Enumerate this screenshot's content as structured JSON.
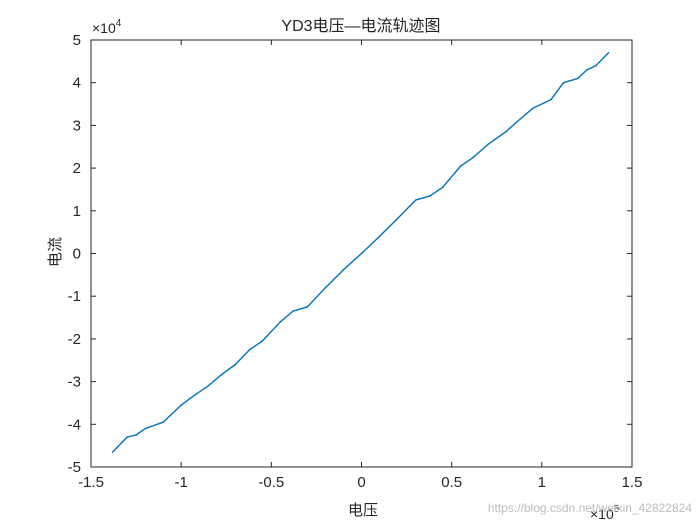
{
  "chart_data": {
    "type": "line",
    "title": "YD3电压—电流轨迹图",
    "xlabel": "电压",
    "ylabel": "电流",
    "x_exponent_label": "×10",
    "x_exponent_power": "5",
    "y_exponent_label": "×10",
    "y_exponent_power": "4",
    "xlim": [
      -1.5,
      1.5
    ],
    "ylim": [
      -5,
      5
    ],
    "x_ticks": [
      -1.5,
      -1,
      -0.5,
      0,
      0.5,
      1,
      1.5
    ],
    "x_tick_labels": [
      "-1.5",
      "-1",
      "-0.5",
      "0",
      "0.5",
      "1",
      "1.5"
    ],
    "y_ticks": [
      -5,
      -4,
      -3,
      -2,
      -1,
      0,
      1,
      2,
      3,
      4,
      5
    ],
    "y_tick_labels": [
      "-5",
      "-4",
      "-3",
      "-2",
      "-1",
      "0",
      "1",
      "2",
      "3",
      "4",
      "5"
    ],
    "grid": false,
    "series": [
      {
        "color": "#0072BD",
        "x": [
          -1.38,
          -1.3,
          -1.25,
          -1.2,
          -1.1,
          -1.0,
          -0.92,
          -0.85,
          -0.78,
          -0.7,
          -0.62,
          -0.55,
          -0.45,
          -0.38,
          -0.3,
          -0.2,
          -0.1,
          0.0,
          0.1,
          0.2,
          0.3,
          0.38,
          0.45,
          0.55,
          0.62,
          0.7,
          0.8,
          0.88,
          0.95,
          1.05,
          1.12,
          1.2,
          1.25,
          1.3,
          1.37
        ],
        "y": [
          -4.65,
          -4.3,
          -4.25,
          -4.1,
          -3.95,
          -3.55,
          -3.3,
          -3.1,
          -2.85,
          -2.6,
          -2.25,
          -2.05,
          -1.6,
          -1.35,
          -1.25,
          -0.8,
          -0.38,
          0.0,
          0.4,
          0.82,
          1.25,
          1.35,
          1.55,
          2.05,
          2.25,
          2.55,
          2.85,
          3.15,
          3.4,
          3.6,
          4.0,
          4.1,
          4.3,
          4.4,
          4.7
        ]
      }
    ]
  },
  "watermark": "https://blog.csdn.net/weixin_42822824"
}
